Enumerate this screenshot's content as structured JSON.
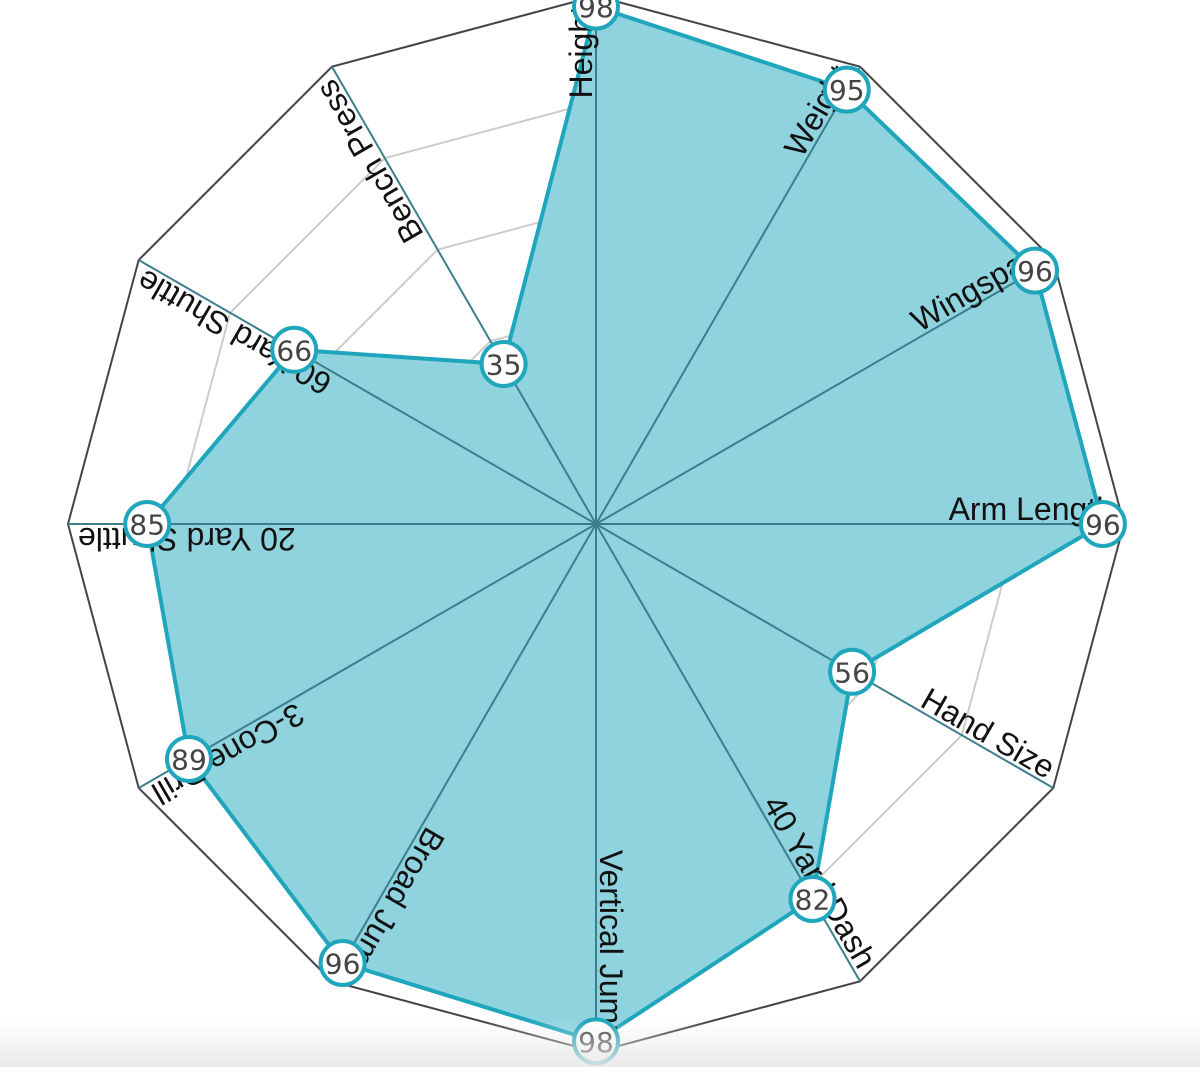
{
  "chart_data": {
    "type": "radar",
    "title": "",
    "axes": [
      "Height",
      "Weight",
      "Wingspan",
      "Arm Length",
      "Hand Size",
      "40 Yard Dash",
      "Vertical Jump",
      "Broad Jump",
      "3-Cone Drill",
      "20 Yard Shuttle",
      "60 Yard Shuttle",
      "Bench Press"
    ],
    "series": [
      {
        "values": [
          98,
          95,
          96,
          96,
          56,
          82,
          98,
          96,
          89,
          85,
          66,
          35
        ]
      }
    ],
    "range": [
      0,
      100
    ],
    "rings": 5,
    "grid": true,
    "colors": {
      "fill": "#8fd3df",
      "stroke": "#1fa6bd",
      "spoke": "#3c7f8c",
      "outline": "#444444",
      "grid": "#cccccc"
    }
  }
}
